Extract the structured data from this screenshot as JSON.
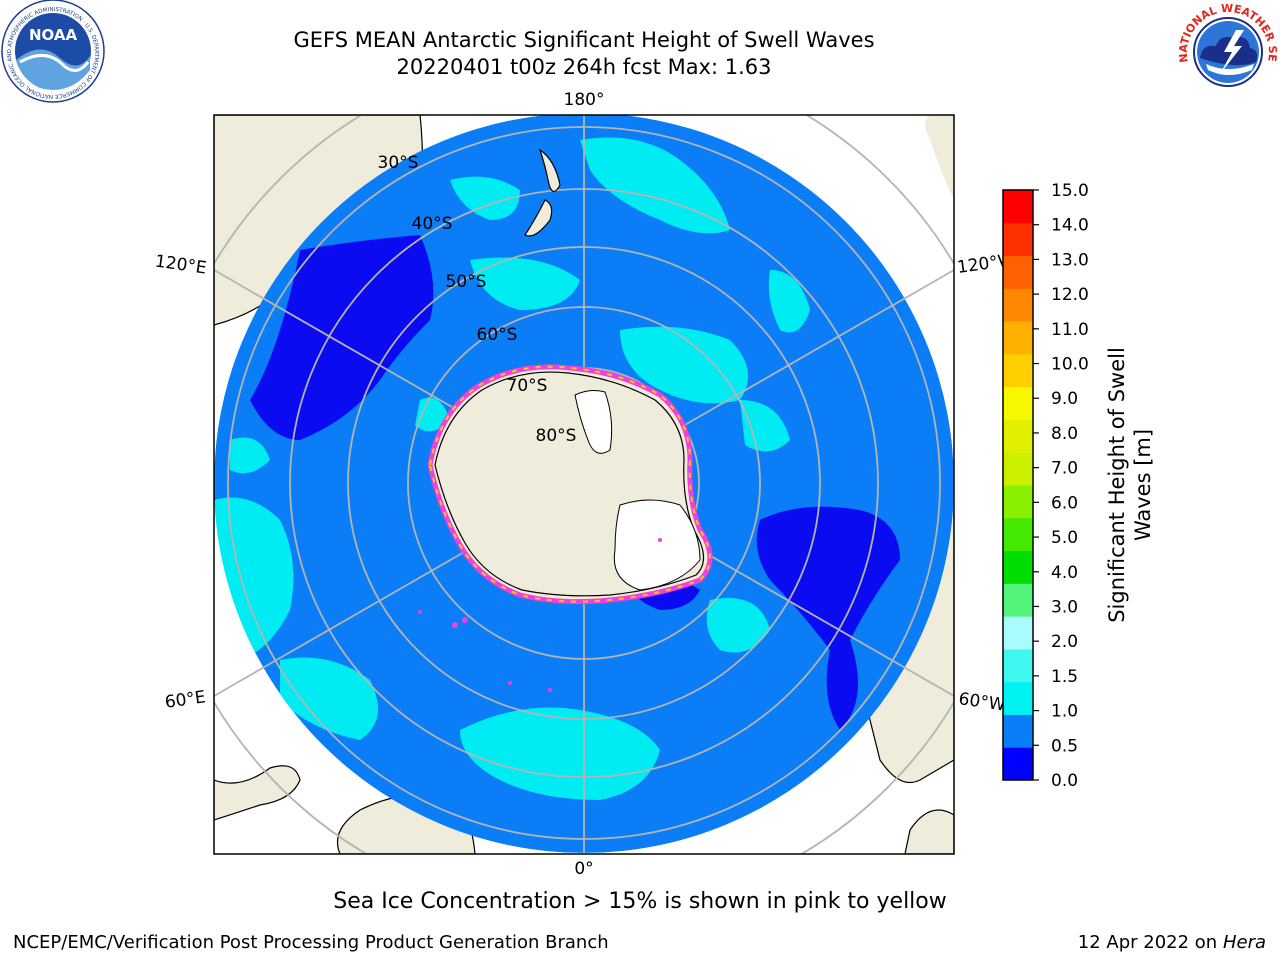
{
  "header": {
    "title_line1": "GEFS MEAN Antarctic Significant Height of Swell Waves",
    "title_line2": "20220401 t00z 264h fcst   Max: 1.63"
  },
  "logos": {
    "noaa_text": "NOAA",
    "noaa_ring_text": "NATIONAL OCEANIC AND ATMOSPHERIC ADMINISTRATION · U.S. DEPARTMENT OF COMMERCE",
    "nws_ring_text": "NATIONAL WEATHER SERVICE"
  },
  "map": {
    "longitude_labels": {
      "top": "180°",
      "bottom": "0°",
      "left_upper": "120°E",
      "left_lower": "60°E",
      "right_upper": "120°W",
      "right_lower": "60°W"
    },
    "latitude_labels": [
      "30°S",
      "40°S",
      "50°S",
      "60°S",
      "70°S",
      "80°S"
    ],
    "colors": {
      "land": "#efecdc",
      "ocean_0_5_1_0": "#0a7df7",
      "ocean_0_0_0_5": "#0b0bf2",
      "swell_1_0_1_5": "#00f2f2",
      "grid": "#b4b4b4",
      "sea_ice_pink": "#f040d8",
      "sea_ice_yellow": "#f6c520"
    }
  },
  "colorbar": {
    "label_line1": "Significant Height of Swell",
    "label_line2": "Waves [m]",
    "ticks": [
      "0.0",
      "0.5",
      "1.0",
      "1.5",
      "2.0",
      "3.0",
      "4.0",
      "5.0",
      "6.0",
      "7.0",
      "8.0",
      "9.0",
      "10.0",
      "11.0",
      "12.0",
      "13.0",
      "14.0",
      "15.0"
    ],
    "colors": [
      "#0000ff",
      "#0a7df7",
      "#00f2f2",
      "#40f8f0",
      "#a8fcfc",
      "#52f57a",
      "#00dd00",
      "#44e800",
      "#88f000",
      "#ccf000",
      "#e0f000",
      "#f8f800",
      "#ffd000",
      "#ffb000",
      "#ff8800",
      "#ff6000",
      "#ff3000",
      "#ff0000"
    ]
  },
  "footer": {
    "note": "Sea Ice Concentration > 15% is shown in pink to yellow",
    "credit": "NCEP/EMC/Verification Post Processing Product Generation Branch",
    "date": "12 Apr 2022 on",
    "host": "Hera"
  }
}
